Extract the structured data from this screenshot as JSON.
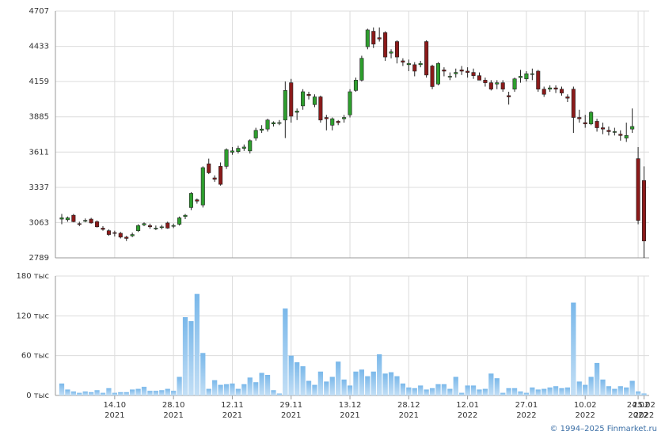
{
  "chart_data": {
    "type": "candlestick",
    "categories": [
      null,
      null,
      null,
      null,
      null,
      null,
      null,
      null,
      null,
      {
        "day": "14.10",
        "year": "2021"
      },
      null,
      null,
      null,
      null,
      null,
      null,
      null,
      null,
      null,
      {
        "day": "28.10",
        "year": "2021"
      },
      null,
      null,
      null,
      null,
      null,
      null,
      null,
      null,
      null,
      {
        "day": "12.11",
        "year": "2021"
      },
      null,
      null,
      null,
      null,
      null,
      null,
      null,
      null,
      null,
      {
        "day": "29.11",
        "year": "2021"
      },
      null,
      null,
      null,
      null,
      null,
      null,
      null,
      null,
      null,
      {
        "day": "13.12",
        "year": "2021"
      },
      null,
      null,
      null,
      null,
      null,
      null,
      null,
      null,
      null,
      {
        "day": "28.12",
        "year": "2021"
      },
      null,
      null,
      null,
      null,
      null,
      null,
      null,
      null,
      null,
      {
        "day": "12.01",
        "year": "2022"
      },
      null,
      null,
      null,
      null,
      null,
      null,
      null,
      null,
      null,
      {
        "day": "27.01",
        "year": "2022"
      },
      null,
      null,
      null,
      null,
      null,
      null,
      null,
      null,
      null,
      {
        "day": "10.02",
        "year": "2022"
      },
      null,
      null,
      null,
      null,
      null,
      null,
      null,
      null,
      {
        "day": "24.02",
        "year": "2022"
      },
      {
        "day": "25.02",
        "year": "2022"
      }
    ],
    "open": [
      3090,
      3085,
      3120,
      3055,
      3075,
      3090,
      3070,
      3020,
      3000,
      2985,
      2980,
      2950,
      2960,
      3000,
      3045,
      3040,
      3015,
      3025,
      3060,
      3035,
      3050,
      3110,
      3180,
      3240,
      3200,
      3520,
      3410,
      3500,
      3500,
      3610,
      3615,
      3640,
      3620,
      3720,
      3780,
      3790,
      3830,
      3835,
      3860,
      4150,
      3920,
      3970,
      4060,
      3980,
      4040,
      3880,
      3820,
      3850,
      3870,
      3900,
      4090,
      4170,
      4430,
      4550,
      4500,
      4540,
      4380,
      4470,
      4320,
      4290,
      4290,
      4290,
      4470,
      4280,
      4140,
      4250,
      4200,
      4220,
      4250,
      4240,
      4230,
      4205,
      4170,
      4150,
      4140,
      4150,
      4050,
      4100,
      4190,
      4180,
      4220,
      4240,
      4100,
      4100,
      4110,
      4100,
      4040,
      4100,
      3880,
      3840,
      3830,
      3850,
      3800,
      3780,
      3770,
      3750,
      3720,
      3790,
      3560,
      3390
    ],
    "high": [
      3130,
      3110,
      3130,
      3070,
      3095,
      3100,
      3080,
      3035,
      3010,
      3000,
      2990,
      2960,
      2985,
      3050,
      3065,
      3055,
      3040,
      3045,
      3070,
      3055,
      3110,
      3130,
      3300,
      3250,
      3500,
      3560,
      3430,
      3530,
      3640,
      3650,
      3660,
      3670,
      3710,
      3800,
      3820,
      3870,
      3850,
      3860,
      4160,
      4180,
      3950,
      4100,
      4080,
      4060,
      4050,
      3900,
      3880,
      3860,
      3900,
      4100,
      4190,
      4360,
      4570,
      4580,
      4580,
      4550,
      4410,
      4480,
      4340,
      4330,
      4310,
      4320,
      4480,
      4290,
      4310,
      4270,
      4230,
      4260,
      4280,
      4270,
      4260,
      4230,
      4190,
      4170,
      4170,
      4170,
      4080,
      4190,
      4250,
      4240,
      4260,
      4250,
      4120,
      4130,
      4130,
      4120,
      4060,
      4120,
      3940,
      3900,
      3930,
      3870,
      3840,
      3810,
      3800,
      3780,
      3840,
      3950,
      3650,
      3500
    ],
    "low": [
      3050,
      3070,
      3065,
      3035,
      3065,
      3055,
      3025,
      3000,
      2960,
      2955,
      2940,
      2920,
      2950,
      2990,
      3035,
      3015,
      3005,
      3010,
      3015,
      3020,
      3040,
      3090,
      3160,
      3210,
      3180,
      3440,
      3380,
      3350,
      3480,
      3590,
      3600,
      3620,
      3600,
      3700,
      3760,
      3770,
      3810,
      3820,
      3720,
      3840,
      3860,
      3940,
      4020,
      3960,
      3840,
      3780,
      3780,
      3820,
      3840,
      3880,
      4080,
      4160,
      4410,
      4420,
      4470,
      4320,
      4340,
      4300,
      4280,
      4240,
      4200,
      4270,
      4190,
      4100,
      4130,
      4200,
      4170,
      4190,
      4210,
      4190,
      4180,
      4170,
      4120,
      4090,
      4100,
      4080,
      3980,
      4080,
      4150,
      4160,
      4170,
      4080,
      4040,
      4080,
      4070,
      4050,
      4000,
      3760,
      3840,
      3800,
      3820,
      3770,
      3750,
      3740,
      3740,
      3700,
      3690,
      3760,
      3050,
      2789
    ],
    "close": [
      3100,
      3100,
      3070,
      3050,
      3080,
      3060,
      3030,
      3010,
      2970,
      2980,
      2950,
      2940,
      2970,
      3040,
      3055,
      3030,
      3020,
      3030,
      3020,
      3040,
      3100,
      3120,
      3290,
      3230,
      3490,
      3450,
      3400,
      3360,
      3630,
      3620,
      3640,
      3650,
      3700,
      3780,
      3790,
      3860,
      3840,
      3840,
      4090,
      3890,
      3930,
      4080,
      4050,
      4040,
      3860,
      3870,
      3870,
      3840,
      3880,
      4080,
      4170,
      4340,
      4560,
      4450,
      4490,
      4350,
      4390,
      4350,
      4310,
      4300,
      4240,
      4300,
      4210,
      4120,
      4300,
      4240,
      4200,
      4230,
      4240,
      4230,
      4205,
      4170,
      4150,
      4100,
      4150,
      4100,
      4040,
      4180,
      4200,
      4220,
      4220,
      4100,
      4060,
      4110,
      4100,
      4070,
      4030,
      3880,
      3870,
      3830,
      3920,
      3800,
      3790,
      3770,
      3770,
      3740,
      3740,
      3810,
      3080,
      2920
    ],
    "volume": [
      18,
      9,
      6,
      4,
      6,
      5,
      8,
      4,
      11,
      4,
      5,
      5,
      9,
      10,
      13,
      7,
      7,
      8,
      10,
      7,
      28,
      118,
      112,
      153,
      64,
      10,
      23,
      16,
      17,
      18,
      10,
      17,
      27,
      20,
      34,
      31,
      8,
      3,
      131,
      60,
      50,
      44,
      22,
      16,
      36,
      21,
      28,
      51,
      24,
      15,
      36,
      39,
      29,
      36,
      62,
      33,
      35,
      29,
      18,
      12,
      11,
      15,
      9,
      11,
      17,
      17,
      10,
      28,
      4,
      15,
      15,
      9,
      10,
      33,
      26,
      4,
      11,
      11,
      6,
      4,
      12,
      9,
      10,
      12,
      14,
      11,
      12,
      140,
      21,
      16,
      28,
      49,
      24,
      14,
      10,
      14,
      12,
      22,
      6,
      3
    ],
    "up_color": "#2e9e2e",
    "down_color": "#8b1a1a",
    "volume_color": "#7ab8ea",
    "ylim": [
      2789,
      4707
    ],
    "yticks": [
      2789,
      3063,
      3337,
      3611,
      3885,
      4159,
      4433,
      4707
    ],
    "volume_ylim": [
      0,
      180
    ],
    "volume_ticks": [
      {
        "value": 0,
        "label": "0 тыс"
      },
      {
        "value": 60,
        "label": "60 тыс"
      },
      {
        "value": 120,
        "label": "120 тыс"
      },
      {
        "value": 180,
        "label": "180 тыс"
      }
    ],
    "grid": true
  },
  "footer": {
    "copyright": "© 1994–2025 Finmarket.ru"
  }
}
